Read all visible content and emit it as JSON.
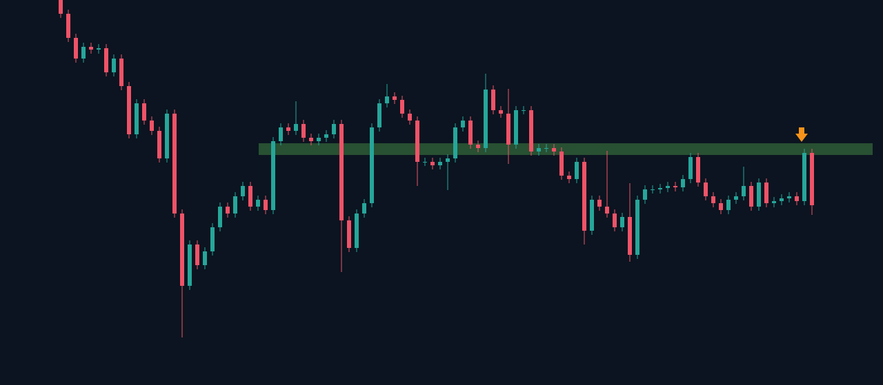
{
  "chart_data": {
    "type": "candlestick",
    "ylim": [
      0,
      559
    ],
    "up_color": "#26a69a",
    "down_color": "#ef5368",
    "zone": {
      "low": 334,
      "high": 351,
      "color": "#2e5a36"
    },
    "open": [
      559,
      539,
      504,
      474,
      491,
      487,
      489,
      454,
      474,
      434,
      364,
      409,
      384,
      369,
      329,
      394,
      249,
      144,
      204,
      174,
      194,
      229,
      259,
      249,
      274,
      289,
      259,
      269,
      254,
      354,
      374,
      369,
      379,
      359,
      354,
      359,
      364,
      379,
      239,
      199,
      249,
      264,
      374,
      409,
      419,
      414,
      394,
      384,
      324,
      324,
      319,
      324,
      329,
      374,
      384,
      349,
      344,
      429,
      399,
      394,
      349,
      399,
      399,
      339,
      344,
      344,
      339,
      304,
      299,
      324,
      224,
      269,
      259,
      249,
      229,
      244,
      189,
      269,
      284,
      284,
      286,
      289,
      287,
      299,
      331,
      294,
      274,
      264,
      254,
      269,
      274,
      289,
      259,
      294,
      264,
      267,
      271,
      274,
      267,
      337
    ],
    "high": [
      565,
      545,
      510,
      497,
      497,
      495,
      495,
      480,
      480,
      440,
      415,
      415,
      390,
      375,
      400,
      400,
      255,
      210,
      210,
      200,
      235,
      265,
      265,
      280,
      295,
      295,
      275,
      275,
      360,
      380,
      380,
      412,
      385,
      365,
      365,
      370,
      385,
      385,
      245,
      255,
      270,
      380,
      415,
      437,
      425,
      420,
      400,
      390,
      330,
      330,
      330,
      335,
      380,
      390,
      390,
      355,
      452,
      435,
      405,
      430,
      405,
      405,
      405,
      350,
      350,
      350,
      345,
      310,
      330,
      330,
      275,
      275,
      340,
      255,
      250,
      293,
      275,
      290,
      290,
      292,
      295,
      295,
      305,
      337,
      337,
      300,
      280,
      270,
      275,
      280,
      317,
      295,
      300,
      300,
      273,
      277,
      280,
      280,
      343,
      343
    ],
    "low": [
      533,
      498,
      468,
      468,
      481,
      481,
      448,
      448,
      428,
      358,
      358,
      378,
      363,
      323,
      323,
      243,
      69,
      138,
      168,
      168,
      188,
      223,
      243,
      243,
      268,
      253,
      253,
      248,
      248,
      348,
      363,
      363,
      353,
      348,
      348,
      353,
      358,
      164,
      193,
      193,
      243,
      258,
      368,
      403,
      408,
      388,
      378,
      289,
      318,
      313,
      313,
      283,
      323,
      368,
      343,
      338,
      338,
      393,
      388,
      321,
      343,
      393,
      333,
      333,
      338,
      333,
      298,
      293,
      293,
      204,
      218,
      253,
      243,
      223,
      223,
      179,
      183,
      263,
      278,
      278,
      280,
      281,
      281,
      293,
      288,
      268,
      258,
      248,
      248,
      263,
      268,
      253,
      253,
      258,
      258,
      261,
      265,
      261,
      261,
      247
    ],
    "close": [
      539,
      504,
      474,
      491,
      487,
      489,
      454,
      474,
      434,
      364,
      409,
      384,
      369,
      329,
      394,
      249,
      144,
      204,
      174,
      194,
      229,
      259,
      249,
      274,
      289,
      259,
      269,
      254,
      354,
      374,
      369,
      379,
      359,
      354,
      359,
      364,
      379,
      239,
      199,
      249,
      264,
      374,
      409,
      419,
      414,
      394,
      384,
      324,
      324,
      319,
      324,
      329,
      374,
      384,
      349,
      344,
      429,
      399,
      394,
      349,
      399,
      399,
      339,
      344,
      344,
      339,
      304,
      299,
      324,
      224,
      269,
      259,
      249,
      229,
      244,
      189,
      269,
      284,
      284,
      286,
      289,
      287,
      299,
      331,
      294,
      274,
      264,
      254,
      269,
      274,
      289,
      259,
      294,
      264,
      267,
      271,
      274,
      267,
      337,
      261
    ]
  }
}
